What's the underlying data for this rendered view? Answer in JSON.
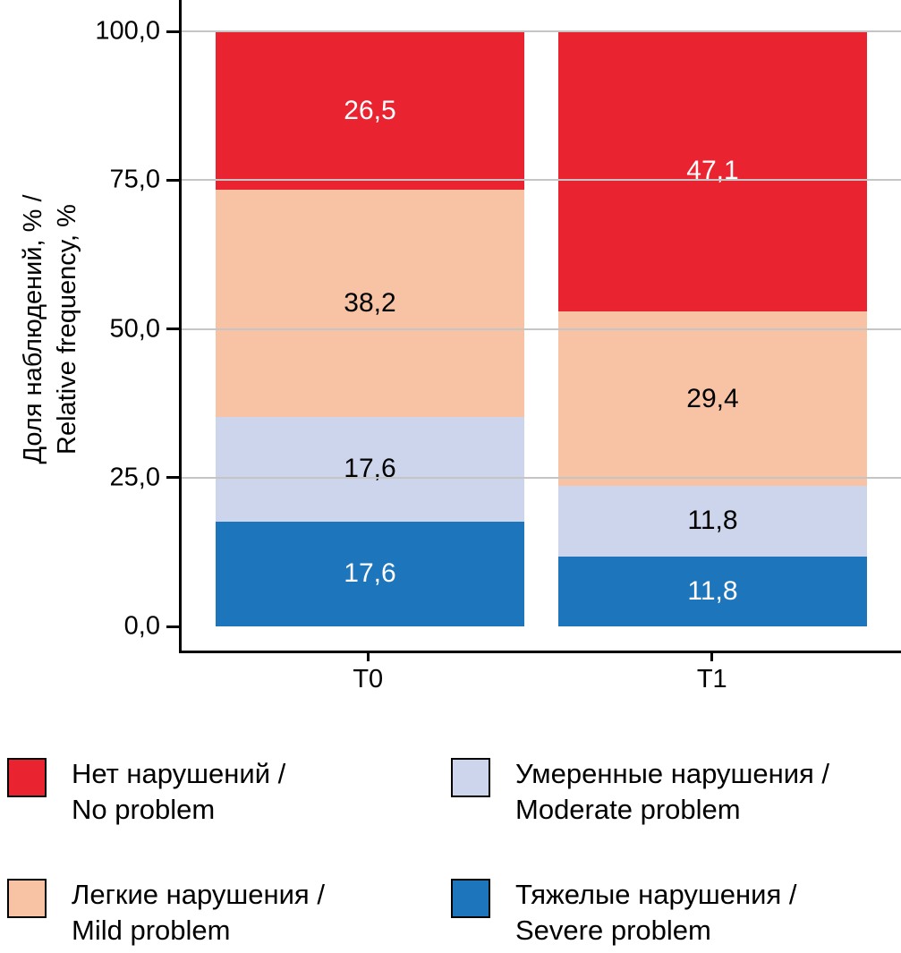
{
  "chart_data": {
    "type": "bar",
    "stacked": true,
    "ylabel_lines": [
      "Доля наблюдений, % /",
      "Relative frequency, %"
    ],
    "ylabel": "Доля наблюдений, % / Relative frequency, %",
    "ylim": [
      0,
      100
    ],
    "grid": true,
    "gridlines": [
      25,
      50,
      75,
      100
    ],
    "yticks": [
      {
        "label": "0,0",
        "value": 0
      },
      {
        "label": "25,0",
        "value": 25
      },
      {
        "label": "50,0",
        "value": 50
      },
      {
        "label": "75,0",
        "value": 75
      },
      {
        "label": "100,0",
        "value": 100
      }
    ],
    "categories": [
      "T0",
      "T1"
    ],
    "series": [
      {
        "name": "Тяжелые нарушения / Severe problem",
        "color": "#1d76bb",
        "label_color": "#ffffff",
        "values": [
          17.6,
          11.8
        ],
        "labels": [
          "17,6",
          "11,8"
        ]
      },
      {
        "name": "Умеренные нарушения / Moderate problem",
        "color": "#ccd5eb",
        "label_color": "#000000",
        "values": [
          17.6,
          11.8
        ],
        "labels": [
          "17,6",
          "11,8"
        ]
      },
      {
        "name": "Легкие нарушения / Mild problem",
        "color": "#f8c3a5",
        "label_color": "#000000",
        "values": [
          38.2,
          29.4
        ],
        "labels": [
          "38,2",
          "29,4"
        ]
      },
      {
        "name": "Нет нарушений / No problem",
        "color": "#ea2331",
        "label_color": "#ffffff",
        "values": [
          26.5,
          47.1
        ],
        "labels": [
          "26,5",
          "47,1"
        ]
      }
    ],
    "legend_position": "bottom"
  },
  "legend": {
    "items": [
      {
        "series_index": 3,
        "line1": "Нет нарушений /",
        "line2": "No problem"
      },
      {
        "series_index": 1,
        "line1": "Умеренные нарушения /",
        "line2": "Moderate problem"
      },
      {
        "series_index": 2,
        "line1": "Легкие нарушения /",
        "line2": "Mild problem"
      },
      {
        "series_index": 0,
        "line1": "Тяжелые нарушения /",
        "line2": "Severe problem"
      }
    ]
  }
}
